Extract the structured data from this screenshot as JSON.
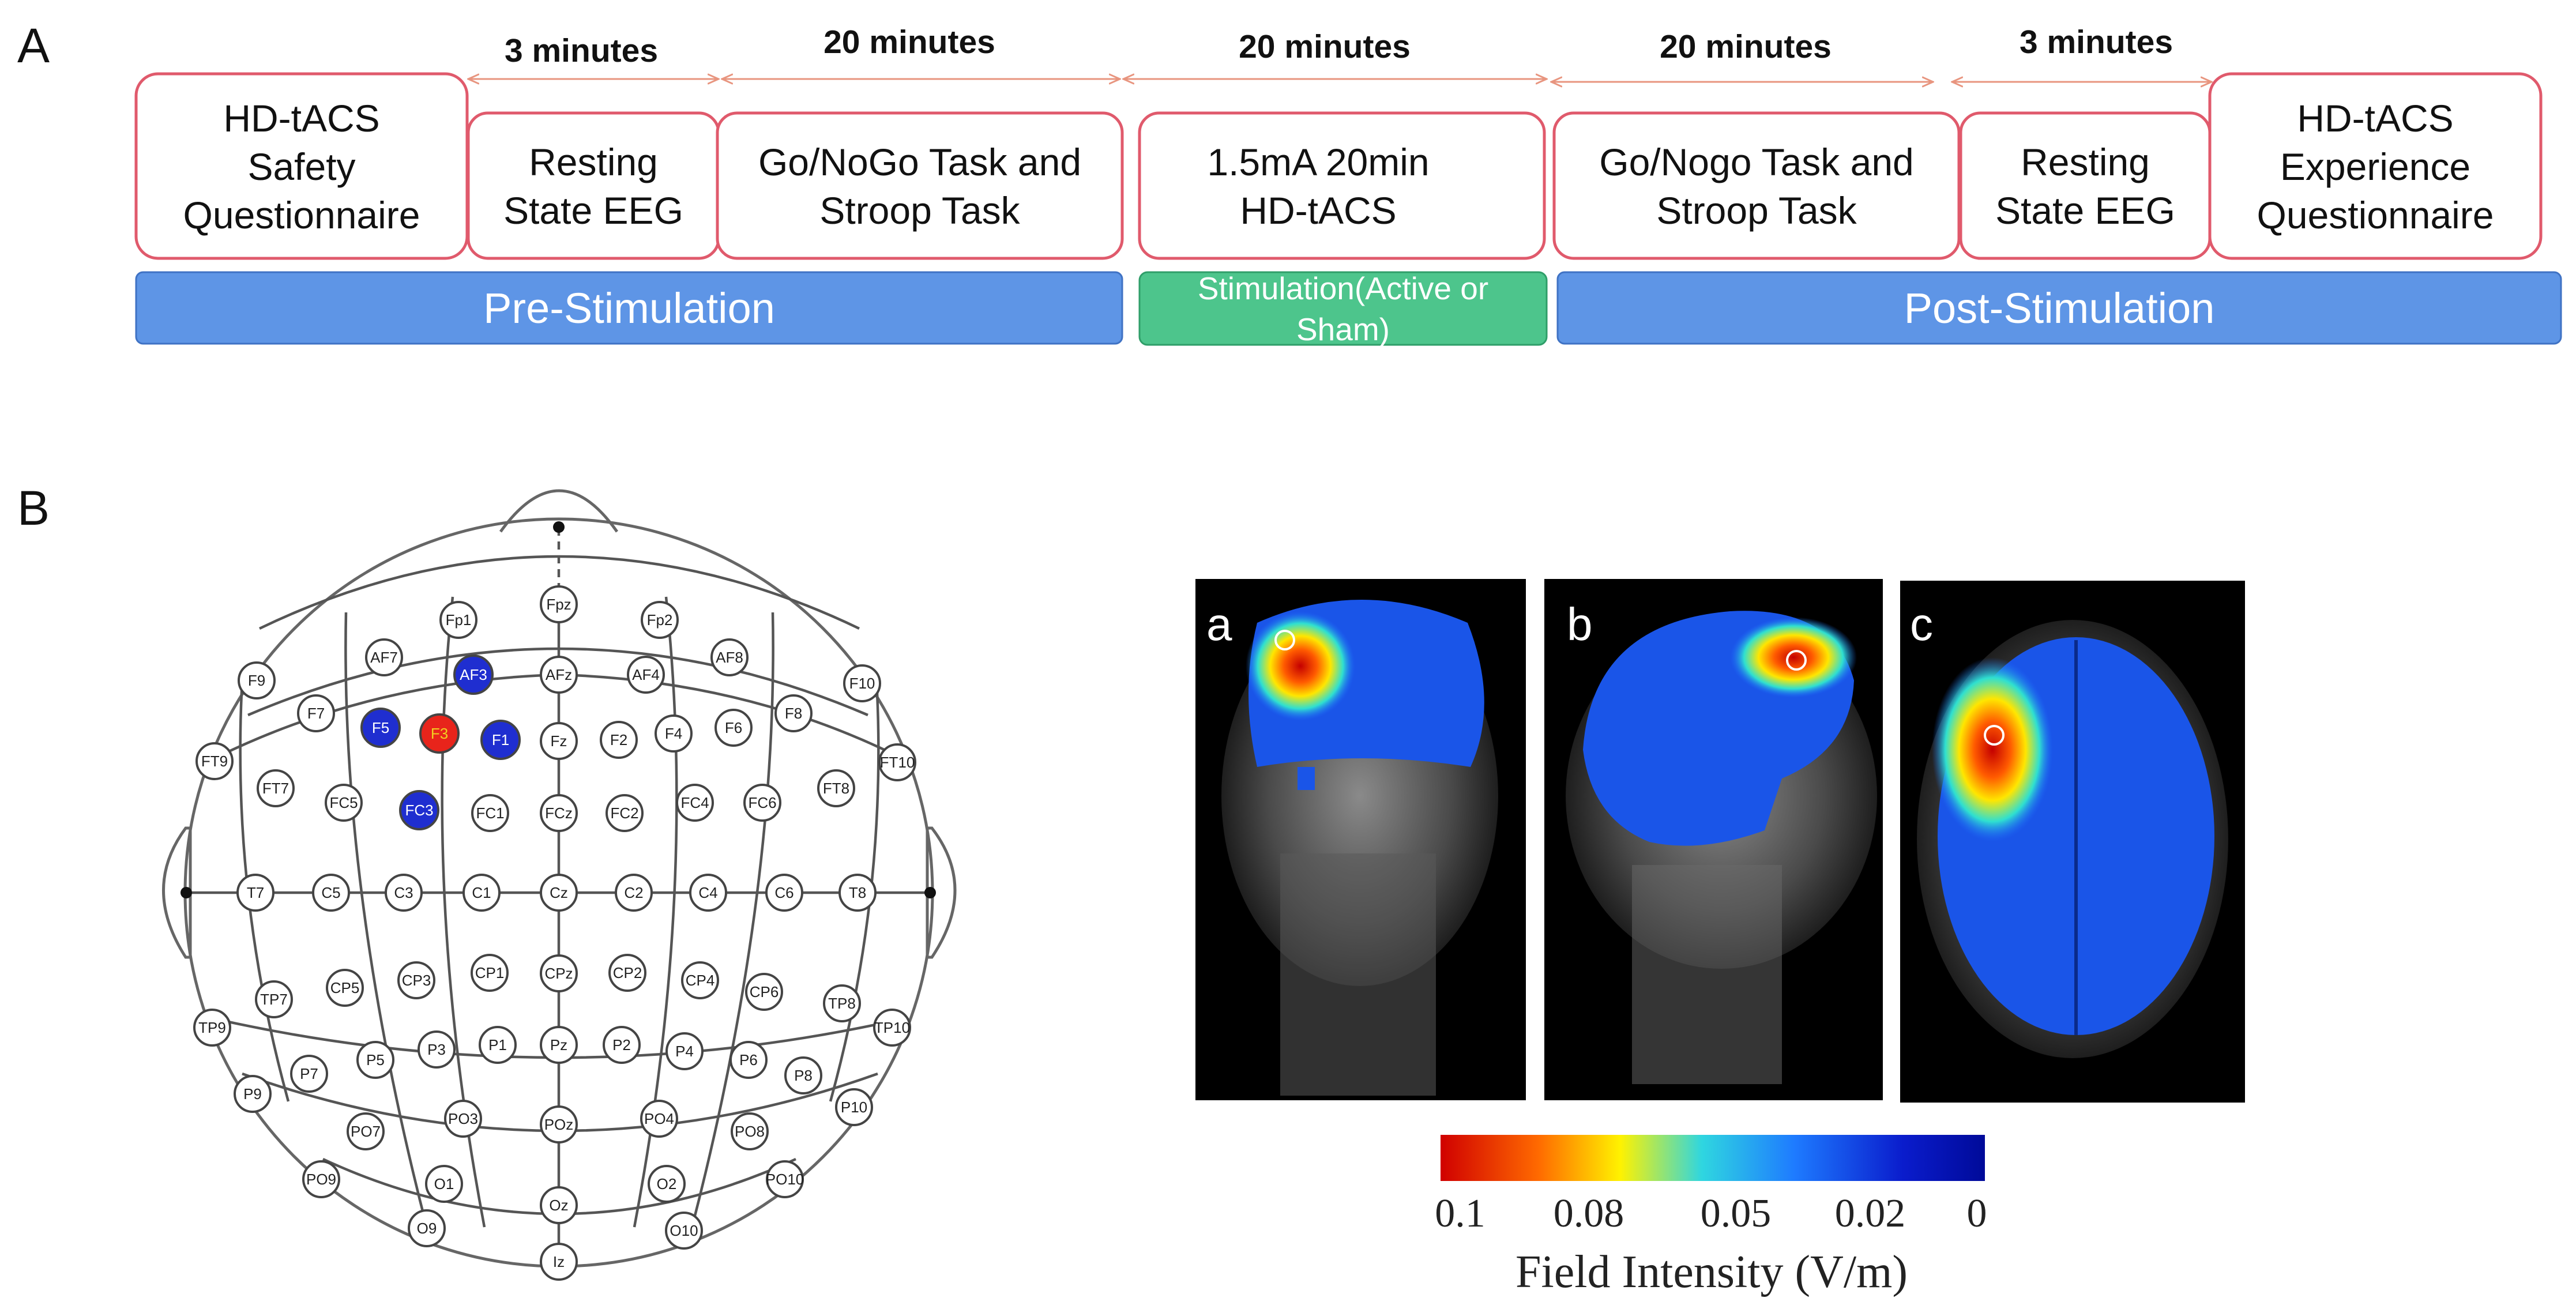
{
  "panel_a": {
    "letter": "A",
    "durations": [
      "3 minutes",
      "20 minutes",
      "20 minutes",
      "20 minutes",
      "3 minutes"
    ],
    "boxes": [
      {
        "lines": [
          "HD-tACS",
          "Safety",
          "Questionnaire"
        ]
      },
      {
        "lines": [
          "Resting",
          "State EEG"
        ]
      },
      {
        "lines": [
          "Go/NoGo Task and",
          "Stroop Task"
        ]
      },
      {
        "lines": [
          "1.5mA 20min",
          "HD-tACS"
        ]
      },
      {
        "lines": [
          "Go/Nogo Task and",
          "Stroop Task"
        ]
      },
      {
        "lines": [
          "Resting",
          "State EEG"
        ]
      },
      {
        "lines": [
          "HD-tACS",
          "Experience",
          "Questionnaire"
        ]
      }
    ],
    "phases": {
      "pre": "Pre-Stimulation",
      "stim_line1": "Stimulation(Active or",
      "stim_line2": "Sham)",
      "post": "Post-Stimulation"
    },
    "colors": {
      "box_border": "#e05a6c",
      "pre_post_bar": "#5e95e6",
      "stim_bar": "#4dc58c",
      "arrow": "#e8957f"
    }
  },
  "panel_b": {
    "letter": "B",
    "electrodes": {
      "midline": [
        "Fpz",
        "AFz",
        "Fz",
        "FCz",
        "Cz",
        "CPz",
        "Pz",
        "POz",
        "Oz",
        "Iz"
      ],
      "left": [
        "Fp1",
        "AF7",
        "AF3",
        "F9",
        "F7",
        "F5",
        "F3",
        "F1",
        "FT9",
        "FT7",
        "FC5",
        "FC3",
        "FC1",
        "T7",
        "C5",
        "C3",
        "C1",
        "TP9",
        "TP7",
        "CP5",
        "CP3",
        "CP1",
        "P9",
        "P7",
        "P5",
        "P3",
        "P1",
        "PO7",
        "PO3",
        "PO9",
        "O1",
        "O9"
      ],
      "right": [
        "Fp2",
        "AF4",
        "AF8",
        "F10",
        "F8",
        "F6",
        "F4",
        "F2",
        "FT10",
        "FT8",
        "FC6",
        "FC4",
        "FC2",
        "T8",
        "C6",
        "C4",
        "C2",
        "TP10",
        "TP8",
        "CP6",
        "CP4",
        "CP2",
        "P10",
        "P8",
        "P6",
        "P4",
        "P2",
        "PO8",
        "PO4",
        "PO10",
        "O2",
        "O10"
      ],
      "active_center": "F3",
      "return_electrodes": [
        "AF3",
        "F5",
        "F1",
        "FC3"
      ]
    },
    "mri_views": [
      "a",
      "b",
      "c"
    ],
    "colorbar": {
      "ticks": [
        "0.1",
        "0.08",
        "0.05",
        "0.02",
        "0"
      ],
      "title": "Field Intensity (V/m)",
      "gradient": [
        "#d00000",
        "#ff6a00",
        "#fff200",
        "#2fd6e0",
        "#1e7bff",
        "#0a1ccc",
        "#000a99"
      ]
    },
    "colors": {
      "active": "#e8241b",
      "return": "#1f2ed0",
      "active_text": "#f0d020",
      "return_text": "#ffffff"
    }
  }
}
